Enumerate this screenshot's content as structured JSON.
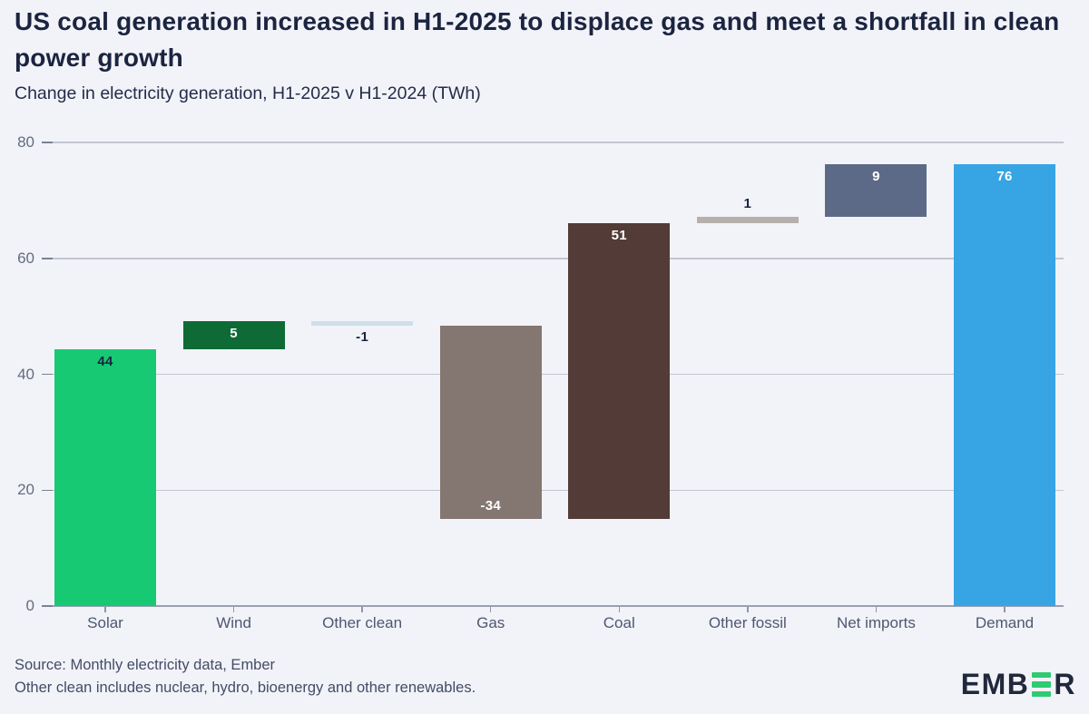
{
  "header": {
    "title": "US coal generation increased in H1-2025 to displace gas and meet a shortfall in clean power growth",
    "subtitle": "Change in electricity generation, H1-2025 v H1-2024 (TWh)"
  },
  "chart_data": {
    "type": "waterfall",
    "title": "US coal generation increased in H1-2025 to displace gas and meet a shortfall in clean power growth",
    "subtitle": "Change in electricity generation, H1-2025 v H1-2024 (TWh)",
    "unit": "TWh",
    "categories": [
      "Solar",
      "Wind",
      "Other clean",
      "Gas",
      "Coal",
      "Other fossil",
      "Net imports",
      "Demand"
    ],
    "values": [
      44,
      5,
      -1,
      -34,
      51,
      1,
      9,
      76
    ],
    "ylim": [
      0,
      80
    ],
    "yticks": [
      0,
      20,
      40,
      60,
      80
    ],
    "grid": true,
    "legend": "none",
    "segments": [
      {
        "category": "Solar",
        "value": 44,
        "display": "44",
        "start": 0,
        "end": 44.3,
        "color": "#17c973",
        "label_color": "#1b2440",
        "label_pos": "inside-top"
      },
      {
        "category": "Wind",
        "value": 5,
        "display": "5",
        "start": 44.3,
        "end": 49.2,
        "color": "#0e6b35",
        "label_color": "#ffffff",
        "label_pos": "inside-top"
      },
      {
        "category": "Other clean",
        "value": -1,
        "display": "-1",
        "start": 48.4,
        "end": 49.2,
        "color": "#cfdfe9",
        "label_color": "#1b2440",
        "label_pos": "below"
      },
      {
        "category": "Gas",
        "value": -34,
        "display": "-34",
        "start": 15.1,
        "end": 48.4,
        "color": "#847671",
        "label_color": "#ffffff",
        "label_pos": "inside-bottom"
      },
      {
        "category": "Coal",
        "value": 51,
        "display": "51",
        "start": 15.1,
        "end": 66.1,
        "color": "#533b37",
        "label_color": "#ffffff",
        "label_pos": "inside-top"
      },
      {
        "category": "Other fossil",
        "value": 1,
        "display": "1",
        "start": 66.1,
        "end": 67.2,
        "color": "#b5b0ac",
        "label_color": "#1b2440",
        "label_pos": "above"
      },
      {
        "category": "Net imports",
        "value": 9,
        "display": "9",
        "start": 67.2,
        "end": 76.2,
        "color": "#5d6a87",
        "label_color": "#ffffff",
        "label_pos": "inside-top"
      },
      {
        "category": "Demand",
        "value": 76,
        "display": "76",
        "start": 0,
        "end": 76.2,
        "color": "#37a4e4",
        "label_color": "#ffffff",
        "label_pos": "inside-top"
      }
    ]
  },
  "footer": {
    "source": "Source: Monthly electricity data, Ember",
    "note": "Other clean includes nuclear, hydro, bioenergy and other renewables.",
    "logo": {
      "text_before": "EMB",
      "green_letter": "E-as-three-bars",
      "text_after": "R",
      "navy": "#20283c",
      "green": "#2ecb73"
    }
  },
  "colors": {
    "background": "#f2f3f8",
    "title_text": "#1b2440",
    "axis_label": "#636c81",
    "category_label": "#4d5772",
    "gridline": "#c2c6d2",
    "zero_line": "#9aa0b2",
    "footer_text": "#424c66"
  }
}
